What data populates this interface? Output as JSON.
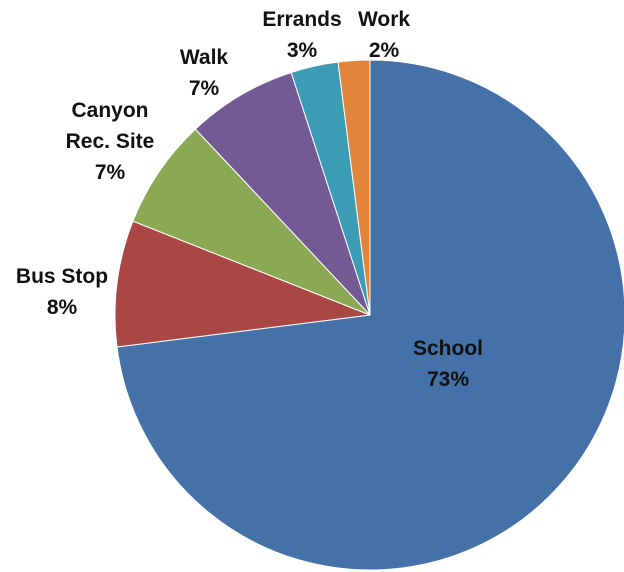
{
  "chart_data": {
    "type": "pie",
    "title": "",
    "slices": [
      {
        "label_lines": [
          "School"
        ],
        "value_label": "73%",
        "value": 73,
        "color": "#4472A8"
      },
      {
        "label_lines": [
          "Bus Stop"
        ],
        "value_label": "8%",
        "value": 8,
        "color": "#AA4744"
      },
      {
        "label_lines": [
          "Canyon",
          "Rec. Site"
        ],
        "value_label": "7%",
        "value": 7,
        "color": "#8BA854"
      },
      {
        "label_lines": [
          "Walk"
        ],
        "value_label": "7%",
        "value": 7,
        "color": "#735A95"
      },
      {
        "label_lines": [
          "Errands"
        ],
        "value_label": "3%",
        "value": 3,
        "color": "#3D9CB5"
      },
      {
        "label_lines": [
          "Work"
        ],
        "value_label": "2%",
        "value": 2,
        "color": "#E0853A"
      }
    ],
    "legend": "none",
    "grid": false
  }
}
